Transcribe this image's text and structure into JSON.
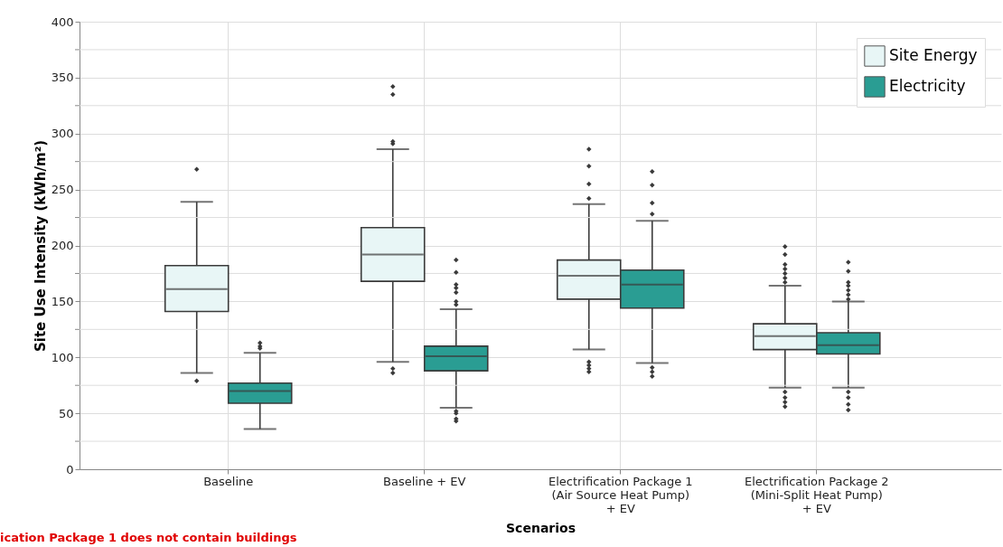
{
  "chart_data": {
    "type": "box",
    "xlabel": "Scenarios",
    "ylabel": "Site Use Intensity (kWh/m²)",
    "categories": [
      "Baseline",
      "Baseline + EV",
      "Electrification Package 1\n(Air Source Heat Pump)\n+ EV",
      "Electrification Package 2\n(Mini-Split Heat Pump)\n+ EV"
    ],
    "series": [
      {
        "name": "Site Energy",
        "color": "#e8f6f6",
        "boxes": [
          {
            "low": 86,
            "q1": 141,
            "median": 161,
            "q3": 182,
            "high": 239,
            "outliers": [
              79,
              268
            ]
          },
          {
            "low": 96,
            "q1": 168,
            "median": 192,
            "q3": 216,
            "high": 286,
            "outliers": [
              86,
              90,
              291,
              293,
              335,
              342
            ]
          },
          {
            "low": 107,
            "q1": 152,
            "median": 173,
            "q3": 187,
            "high": 237,
            "outliers": [
              87,
              90,
              93,
              96,
              242,
              255,
              271,
              286
            ]
          },
          {
            "low": 73,
            "q1": 107,
            "median": 119,
            "q3": 130,
            "high": 164,
            "outliers": [
              56,
              60,
              64,
              69,
              167,
              171,
              175,
              179,
              183,
              192,
              199
            ]
          }
        ]
      },
      {
        "name": "Electricity",
        "color": "#2a9d93",
        "boxes": [
          {
            "low": 36,
            "q1": 59,
            "median": 70,
            "q3": 77,
            "high": 104,
            "outliers": [
              108,
              110,
              113
            ]
          },
          {
            "low": 55,
            "q1": 88,
            "median": 101,
            "q3": 110,
            "high": 143,
            "outliers": [
              43,
              45,
              50,
              52,
              147,
              150,
              158,
              162,
              165,
              176,
              187
            ]
          },
          {
            "low": 95,
            "q1": 144,
            "median": 165,
            "q3": 178,
            "high": 222,
            "outliers": [
              83,
              87,
              91,
              228,
              238,
              254,
              266
            ]
          },
          {
            "low": 73,
            "q1": 103,
            "median": 111,
            "q3": 122,
            "high": 150,
            "outliers": [
              53,
              58,
              64,
              69,
              152,
              156,
              160,
              164,
              167,
              177,
              185
            ]
          }
        ]
      }
    ],
    "ylim": [
      0,
      400
    ],
    "yticks": [
      0,
      {
        "value": 25,
        "label": null
      },
      50,
      {
        "value": 75,
        "label": null
      },
      100,
      {
        "value": 125,
        "label": null
      },
      150,
      {
        "value": 175,
        "label": null
      },
      200,
      {
        "value": 225,
        "label": null
      },
      250,
      {
        "value": 275,
        "label": null
      },
      300,
      {
        "value": 325,
        "label": null
      },
      350,
      {
        "value": 375,
        "label": null
      },
      400
    ],
    "grid": true,
    "legend": "top right",
    "annotations": [
      "ication Package 1 does not contain buildings"
    ]
  }
}
